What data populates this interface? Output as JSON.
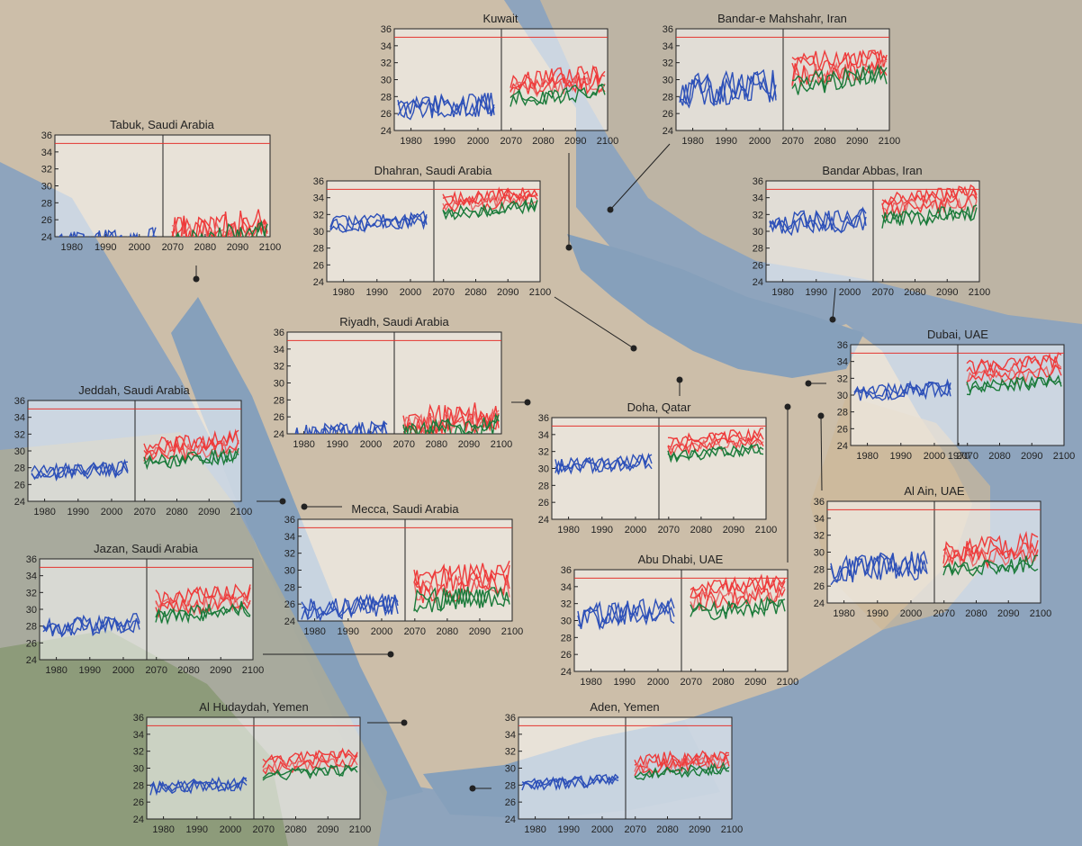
{
  "chart_data": [
    {
      "type": "line",
      "title": "Kuwait",
      "y_ticks": [
        "36",
        "34",
        "32",
        "30",
        "28",
        "26",
        "24"
      ],
      "x_ticks": [
        "1980",
        "1990",
        "2000",
        "2070",
        "2080",
        "2090",
        "2100"
      ],
      "ylim": [
        24,
        36
      ],
      "threshold": 35,
      "hist": {
        "base": 26.5,
        "amp": 1.4
      },
      "proj": [
        {
          "base": 30.2,
          "amp": 1.2
        },
        {
          "base": 29.2,
          "amp": 1.1
        },
        {
          "base": 28.2,
          "amp": 1.0
        }
      ]
    },
    {
      "type": "line",
      "title": "Bandar-e Mahshahr, Iran",
      "y_ticks": [
        "36",
        "34",
        "32",
        "30",
        "28",
        "26",
        "24"
      ],
      "x_ticks": [
        "1980",
        "1990",
        "2000",
        "2070",
        "2080",
        "2090",
        "2100"
      ],
      "ylim": [
        24,
        36
      ],
      "threshold": 35,
      "hist": {
        "base": 28.6,
        "amp": 2.0
      },
      "proj": [
        {
          "base": 32.3,
          "amp": 1.4
        },
        {
          "base": 31.0,
          "amp": 1.4
        },
        {
          "base": 30.0,
          "amp": 1.4
        }
      ]
    },
    {
      "type": "line",
      "title": "Tabuk, Saudi Arabia",
      "y_ticks": [
        "36",
        "34",
        "32",
        "30",
        "28",
        "26",
        "24"
      ],
      "x_ticks": [
        "1980",
        "1990",
        "2000",
        "2070",
        "2080",
        "2090",
        "2100"
      ],
      "ylim": [
        24,
        36
      ],
      "threshold": 35,
      "hist": {
        "base": 23.2,
        "amp": 1.3
      },
      "proj": [
        {
          "base": 25.0,
          "amp": 2.0
        },
        {
          "base": 24.5,
          "amp": 1.6
        },
        {
          "base": 24.0,
          "amp": 1.4
        }
      ]
    },
    {
      "type": "line",
      "title": "Dhahran, Saudi Arabia",
      "y_ticks": [
        "36",
        "34",
        "32",
        "30",
        "28",
        "26",
        "24"
      ],
      "x_ticks": [
        "1980",
        "1990",
        "2000",
        "2070",
        "2080",
        "2090",
        "2100"
      ],
      "ylim": [
        24,
        36
      ],
      "threshold": 35,
      "hist": {
        "base": 30.8,
        "amp": 1.0
      },
      "proj": [
        {
          "base": 34.2,
          "amp": 0.8
        },
        {
          "base": 33.4,
          "amp": 0.8
        },
        {
          "base": 32.6,
          "amp": 0.8
        }
      ]
    },
    {
      "type": "line",
      "title": "Bandar Abbas, Iran",
      "y_ticks": [
        "36",
        "34",
        "32",
        "30",
        "28",
        "26",
        "24"
      ],
      "x_ticks": [
        "1980",
        "1990",
        "2000",
        "2070",
        "2080",
        "2090",
        "2100"
      ],
      "ylim": [
        24,
        36
      ],
      "threshold": 35,
      "hist": {
        "base": 30.8,
        "amp": 1.4
      },
      "proj": [
        {
          "base": 34.2,
          "amp": 1.0
        },
        {
          "base": 33.0,
          "amp": 1.0
        },
        {
          "base": 31.8,
          "amp": 1.0
        }
      ]
    },
    {
      "type": "line",
      "title": "Riyadh, Saudi Arabia",
      "y_ticks": [
        "36",
        "34",
        "32",
        "30",
        "28",
        "26",
        "24"
      ],
      "x_ticks": [
        "1980",
        "1990",
        "2000",
        "2070",
        "2080",
        "2090",
        "2100"
      ],
      "ylim": [
        24,
        36
      ],
      "threshold": 35,
      "hist": {
        "base": 23.6,
        "amp": 1.4
      },
      "proj": [
        {
          "base": 25.8,
          "amp": 1.8
        },
        {
          "base": 25.2,
          "amp": 1.5
        },
        {
          "base": 24.6,
          "amp": 1.3
        }
      ]
    },
    {
      "type": "line",
      "title": "Jeddah, Saudi Arabia",
      "y_ticks": [
        "36",
        "34",
        "32",
        "30",
        "28",
        "26",
        "24"
      ],
      "x_ticks": [
        "1980",
        "1990",
        "2000",
        "2070",
        "2080",
        "2090",
        "2100"
      ],
      "ylim": [
        24,
        36
      ],
      "threshold": 35,
      "hist": {
        "base": 27.3,
        "amp": 1.0
      },
      "proj": [
        {
          "base": 31.0,
          "amp": 1.0
        },
        {
          "base": 30.0,
          "amp": 1.0
        },
        {
          "base": 29.0,
          "amp": 0.9
        }
      ]
    },
    {
      "type": "line",
      "title": "Doha, Qatar",
      "y_ticks": [
        "36",
        "34",
        "32",
        "30",
        "28",
        "26",
        "24"
      ],
      "x_ticks": [
        "1980",
        "1990",
        "2000",
        "2070",
        "2080",
        "2090",
        "2100"
      ],
      "ylim": [
        24,
        36
      ],
      "threshold": 35,
      "hist": {
        "base": 30.2,
        "amp": 0.9
      },
      "proj": [
        {
          "base": 33.6,
          "amp": 0.8
        },
        {
          "base": 32.8,
          "amp": 0.7
        },
        {
          "base": 31.9,
          "amp": 0.7
        }
      ]
    },
    {
      "type": "line",
      "title": "Dubai, UAE",
      "y_ticks": [
        "36",
        "34",
        "32",
        "30",
        "28",
        "26",
        "24"
      ],
      "x_ticks": [
        "1970",
        "1980",
        "1990",
        "2000",
        "2070",
        "2080",
        "2090",
        "2100"
      ],
      "ylim": [
        24,
        36
      ],
      "threshold": 35,
      "hist": {
        "base": 30.2,
        "amp": 1.0
      },
      "proj": [
        {
          "base": 33.6,
          "amp": 1.0
        },
        {
          "base": 32.4,
          "amp": 0.9
        },
        {
          "base": 31.3,
          "amp": 0.8
        }
      ]
    },
    {
      "type": "line",
      "title": "Mecca, Saudi Arabia",
      "y_ticks": [
        "36",
        "34",
        "32",
        "30",
        "28",
        "26",
        "24"
      ],
      "x_ticks": [
        "1980",
        "1990",
        "2000",
        "2070",
        "2080",
        "2090",
        "2100"
      ],
      "ylim": [
        24,
        36
      ],
      "threshold": 35,
      "hist": {
        "base": 25.3,
        "amp": 1.3
      },
      "proj": [
        {
          "base": 29.2,
          "amp": 1.6
        },
        {
          "base": 27.8,
          "amp": 1.5
        },
        {
          "base": 26.8,
          "amp": 1.5
        }
      ]
    },
    {
      "type": "line",
      "title": "Jazan, Saudi Arabia",
      "y_ticks": [
        "36",
        "34",
        "32",
        "30",
        "28",
        "26",
        "24"
      ],
      "x_ticks": [
        "1980",
        "1990",
        "2000",
        "2070",
        "2080",
        "2090",
        "2100"
      ],
      "ylim": [
        24,
        36
      ],
      "threshold": 35,
      "hist": {
        "base": 27.8,
        "amp": 1.2
      },
      "proj": [
        {
          "base": 31.6,
          "amp": 1.2
        },
        {
          "base": 30.6,
          "amp": 1.1
        },
        {
          "base": 29.6,
          "amp": 1.0
        }
      ]
    },
    {
      "type": "line",
      "title": "Al Ain, UAE",
      "y_ticks": [
        "36",
        "34",
        "32",
        "30",
        "28",
        "26",
        "24"
      ],
      "x_ticks": [
        "1980",
        "1990",
        "2000",
        "2070",
        "2080",
        "2090",
        "2100"
      ],
      "ylim": [
        24,
        36
      ],
      "threshold": 35,
      "hist": {
        "base": 27.8,
        "amp": 1.8
      },
      "proj": [
        {
          "base": 30.5,
          "amp": 1.4
        },
        {
          "base": 29.5,
          "amp": 1.2
        },
        {
          "base": 28.3,
          "amp": 1.0
        }
      ]
    },
    {
      "type": "line",
      "title": "Abu Dhabi, UAE",
      "y_ticks": [
        "36",
        "34",
        "32",
        "30",
        "28",
        "26",
        "24"
      ],
      "x_ticks": [
        "1980",
        "1990",
        "2000",
        "2070",
        "2080",
        "2090",
        "2100"
      ],
      "ylim": [
        24,
        36
      ],
      "threshold": 35,
      "hist": {
        "base": 30.5,
        "amp": 1.6
      },
      "proj": [
        {
          "base": 34.0,
          "amp": 1.1
        },
        {
          "base": 32.6,
          "amp": 1.1
        },
        {
          "base": 31.4,
          "amp": 1.1
        }
      ]
    },
    {
      "type": "line",
      "title": "Al Hudaydah, Yemen",
      "y_ticks": [
        "36",
        "34",
        "32",
        "30",
        "28",
        "26",
        "24"
      ],
      "x_ticks": [
        "1980",
        "1990",
        "2000",
        "2070",
        "2080",
        "2090",
        "2100"
      ],
      "ylim": [
        24,
        36
      ],
      "threshold": 35,
      "hist": {
        "base": 27.6,
        "amp": 0.8
      },
      "proj": [
        {
          "base": 31.2,
          "amp": 0.8
        },
        {
          "base": 30.4,
          "amp": 0.7
        },
        {
          "base": 29.5,
          "amp": 0.7
        }
      ]
    },
    {
      "type": "line",
      "title": "Aden, Yemen",
      "y_ticks": [
        "36",
        "34",
        "32",
        "30",
        "28",
        "26",
        "24"
      ],
      "x_ticks": [
        "1980",
        "1990",
        "2000",
        "2070",
        "2080",
        "2090",
        "2100"
      ],
      "ylim": [
        24,
        36
      ],
      "threshold": 35,
      "hist": {
        "base": 28.0,
        "amp": 0.7
      },
      "proj": [
        {
          "base": 31.2,
          "amp": 0.9
        },
        {
          "base": 30.4,
          "amp": 0.8
        },
        {
          "base": 29.6,
          "amp": 0.7
        }
      ]
    }
  ],
  "colors": {
    "historical": "#2d50b8",
    "projection_high": "#ee3b3b",
    "projection_mid": "#e86a6a",
    "projection_low": "#1b7a3a",
    "threshold": "#e3342f",
    "sea": "#7f98b4",
    "land": "#d8c7b0"
  }
}
